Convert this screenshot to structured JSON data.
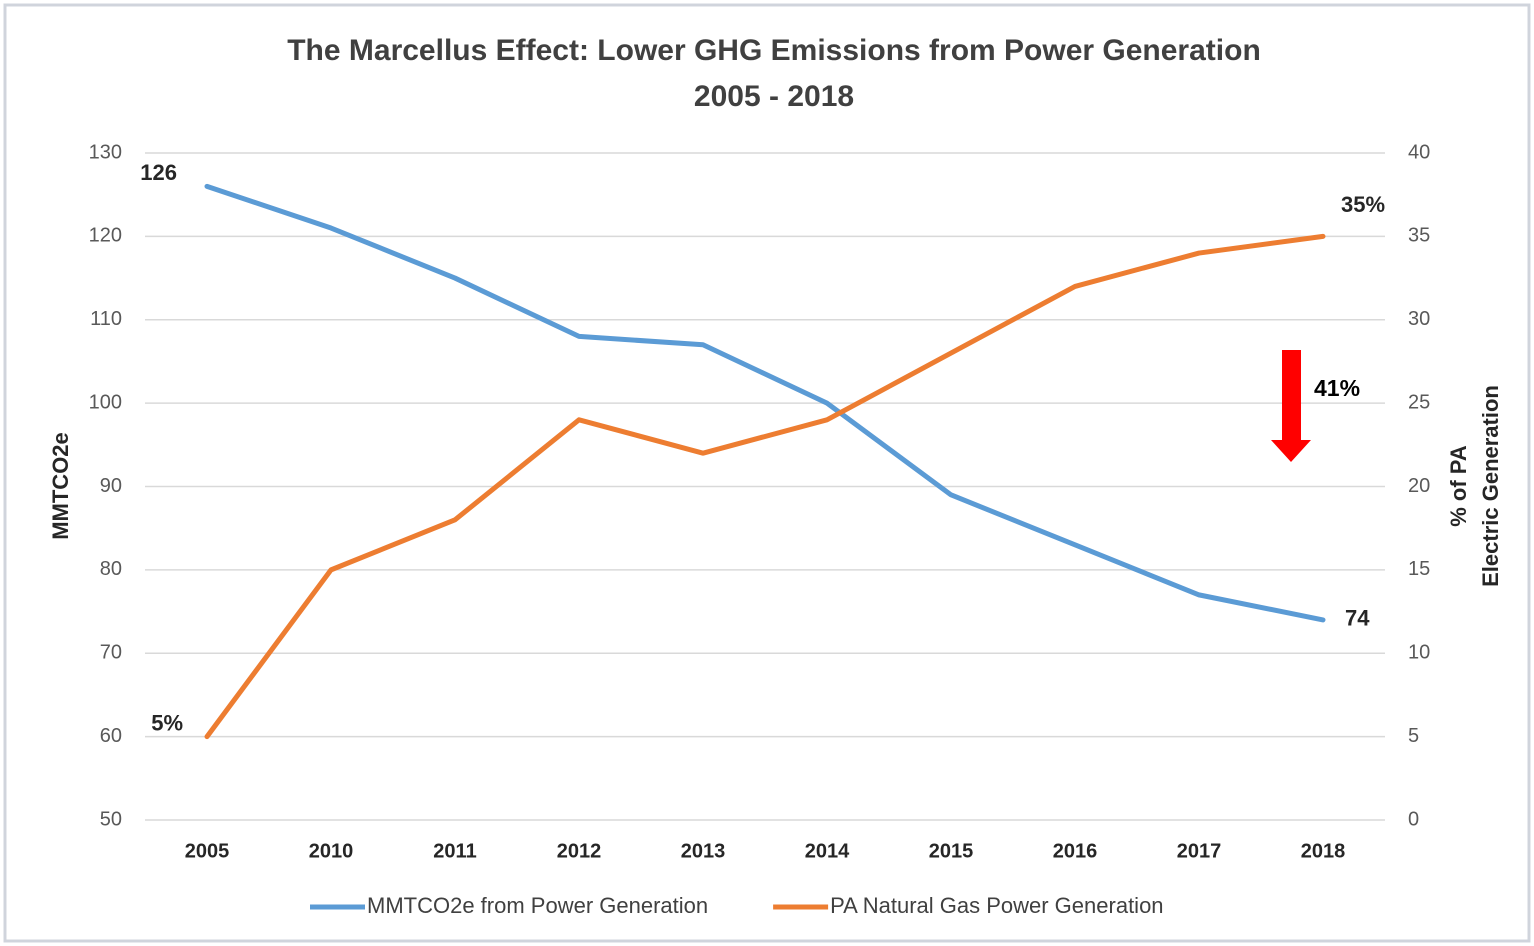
{
  "chart_data": {
    "type": "line",
    "title": "The Marcellus Effect: Lower GHG Emissions from Power Generation",
    "subtitle": "2005 - 2018",
    "y_label": "MMTCO2e",
    "y2_label": [
      "% of PA",
      "Electric Generation"
    ],
    "categories": [
      "2005",
      "2010",
      "2011",
      "2012",
      "2013",
      "2014",
      "2015",
      "2016",
      "2017",
      "2018"
    ],
    "series": [
      {
        "name": "MMTCO2e from Power Generation",
        "color": "#5b9bd5",
        "values": [
          126,
          121,
          115,
          108,
          107,
          100,
          89,
          83,
          77,
          74
        ],
        "value_labels": [
          "126",
          null,
          null,
          null,
          null,
          null,
          null,
          null,
          null,
          "74"
        ]
      },
      {
        "name": "PA Natural Gas Power Generation",
        "color": "#ed7d31",
        "axis": "y2",
        "values": [
          5,
          15,
          18,
          24,
          22,
          24,
          28,
          32,
          34,
          35
        ],
        "value_labels": [
          "5%",
          null,
          null,
          null,
          null,
          null,
          null,
          null,
          null,
          "35%"
        ]
      }
    ],
    "ylim": [
      50,
      130
    ],
    "yticks": [
      50,
      60,
      70,
      80,
      90,
      100,
      110,
      120,
      130
    ],
    "y2lim": [
      0,
      40
    ],
    "y2ticks": [
      0,
      5,
      10,
      15,
      20,
      25,
      30,
      35,
      40
    ],
    "grid": true,
    "legend": "bottom",
    "annotation": "41%",
    "annotation_color": "#ff0000"
  }
}
